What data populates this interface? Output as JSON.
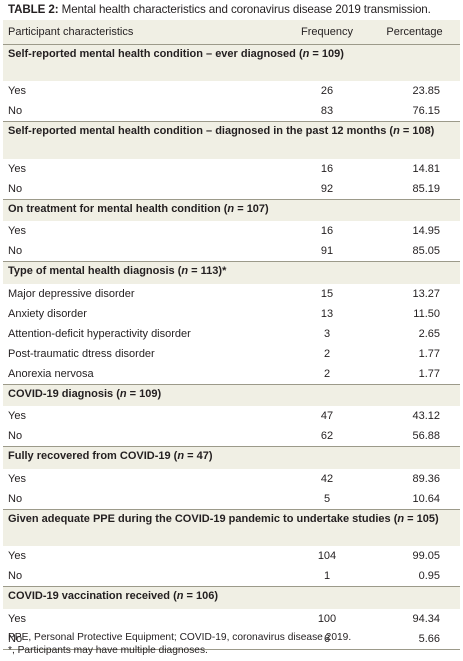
{
  "caption": {
    "label": "TABLE 2:",
    "text": " Mental health characteristics and coronavirus disease 2019 transmission."
  },
  "headers": {
    "characteristics": "Participant characteristics",
    "frequency": "Frequency",
    "percentage": "Percentage"
  },
  "sections": [
    {
      "title": "Self-reported mental health condition – ever diagnosed",
      "n_label": "n",
      "n_suffix": " = 109)",
      "extra": "",
      "rows": [
        {
          "label": "Yes",
          "frequency": "26",
          "percentage": "23.85"
        },
        {
          "label": "No",
          "frequency": "83",
          "percentage": "76.15"
        }
      ]
    },
    {
      "title": "Self-reported mental health condition – diagnosed in the past 12 months",
      "n_label": "n",
      "n_suffix": " = 108)",
      "extra": "",
      "rows": [
        {
          "label": "Yes",
          "frequency": "16",
          "percentage": "14.81"
        },
        {
          "label": "No",
          "frequency": "92",
          "percentage": "85.19"
        }
      ]
    },
    {
      "title": "On treatment for mental health condition",
      "n_label": "n",
      "n_suffix": " = 107)",
      "extra": "",
      "rows": [
        {
          "label": "Yes",
          "frequency": "16",
          "percentage": "14.95"
        },
        {
          "label": "No",
          "frequency": "91",
          "percentage": "85.05"
        }
      ]
    },
    {
      "title": "Type of mental health diagnosis",
      "n_label": "n",
      "n_suffix": " = 113)",
      "extra": "*",
      "rows": [
        {
          "label": "Major depressive disorder",
          "frequency": "15",
          "percentage": "13.27"
        },
        {
          "label": "Anxiety disorder",
          "frequency": "13",
          "percentage": "11.50"
        },
        {
          "label": "Attention-deficit hyperactivity disorder",
          "frequency": "3",
          "percentage": "2.65"
        },
        {
          "label": "Post-traumatic dtress disorder",
          "frequency": "2",
          "percentage": "1.77"
        },
        {
          "label": "Anorexia nervosa",
          "frequency": "2",
          "percentage": "1.77"
        }
      ]
    },
    {
      "title": "COVID-19 diagnosis",
      "n_label": "n",
      "n_suffix": " = 109)",
      "extra": "",
      "rows": [
        {
          "label": "Yes",
          "frequency": "47",
          "percentage": "43.12"
        },
        {
          "label": "No",
          "frequency": "62",
          "percentage": "56.88"
        }
      ]
    },
    {
      "title": "Fully recovered from COVID-19",
      "n_label": "n",
      "n_suffix": " = 47)",
      "extra": "",
      "rows": [
        {
          "label": "Yes",
          "frequency": "42",
          "percentage": "89.36"
        },
        {
          "label": "No",
          "frequency": "5",
          "percentage": "10.64"
        }
      ]
    },
    {
      "title": "Given adequate PPE during the COVID-19 pandemic to undertake studies",
      "n_label": "n",
      "n_suffix": " = 105)",
      "extra": "",
      "rows": [
        {
          "label": "Yes",
          "frequency": "104",
          "percentage": "99.05"
        },
        {
          "label": "No",
          "frequency": "1",
          "percentage": "0.95"
        }
      ]
    },
    {
      "title": "COVID-19 vaccination received",
      "n_label": "n",
      "n_suffix": " = 106)",
      "extra": "",
      "rows": [
        {
          "label": "Yes",
          "frequency": "100",
          "percentage": "94.34"
        },
        {
          "label": "No",
          "frequency": "6",
          "percentage": "5.66"
        }
      ]
    }
  ],
  "footnotes": [
    "PPE, Personal Protective Equipment; COVID-19, coronavirus disease 2019.",
    "*, Participants may have multiple diagnoses."
  ]
}
